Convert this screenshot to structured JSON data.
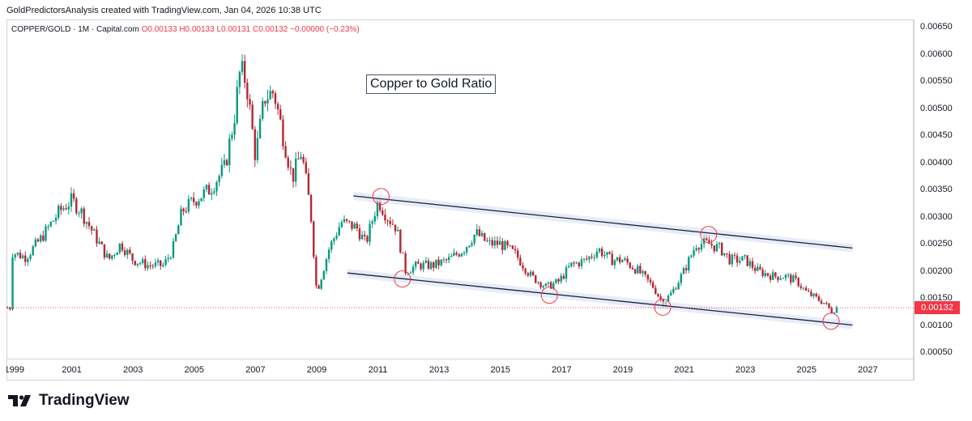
{
  "header": {
    "credit": "GoldPredictorsAnalysis created with TradingView.com, Jan 04, 2026 10:38 UTC"
  },
  "legend": {
    "symbol": "COPPER/GOLD · 1M · Capital.com",
    "open": "O0.00133",
    "high": "H0.00133",
    "low": "L0.00131",
    "close": "C0.00132",
    "change": "−0.00000 (−0.23%)"
  },
  "chart_data": {
    "type": "candlestick",
    "title": "Copper to Gold Ratio",
    "ylim": [
      0.0003,
      0.0067
    ],
    "xlim": [
      1999.0,
      2028.5
    ],
    "y_ticks": [
      "0.00650",
      "0.00600",
      "0.00550",
      "0.00500",
      "0.00450",
      "0.00400",
      "0.00350",
      "0.00300",
      "0.00250",
      "0.00200",
      "0.00150",
      "0.00100",
      "0.00050"
    ],
    "x_ticks": [
      "1999",
      "2001",
      "2003",
      "2005",
      "2007",
      "2009",
      "2011",
      "2013",
      "2015",
      "2017",
      "2019",
      "2021",
      "2023",
      "2025",
      "2027"
    ],
    "last_price": "0.00132",
    "series": [
      {
        "name": "COPPER/GOLD monthly close (approx.)",
        "points": [
          [
            1999.0,
            0.00235
          ],
          [
            1999.5,
            0.00225
          ],
          [
            2000.0,
            0.0026
          ],
          [
            2000.6,
            0.0031
          ],
          [
            2001.0,
            0.0033
          ],
          [
            2001.3,
            0.0031
          ],
          [
            2001.8,
            0.0026
          ],
          [
            2002.2,
            0.0022
          ],
          [
            2002.6,
            0.0025
          ],
          [
            2003.0,
            0.0022
          ],
          [
            2003.5,
            0.0021
          ],
          [
            2004.0,
            0.0021
          ],
          [
            2004.3,
            0.0024
          ],
          [
            2004.6,
            0.0031
          ],
          [
            2005.0,
            0.0033
          ],
          [
            2005.5,
            0.0035
          ],
          [
            2006.0,
            0.0039
          ],
          [
            2006.3,
            0.0048
          ],
          [
            2006.5,
            0.0057
          ],
          [
            2006.7,
            0.0055
          ],
          [
            2007.0,
            0.0041
          ],
          [
            2007.3,
            0.0052
          ],
          [
            2007.6,
            0.0053
          ],
          [
            2007.9,
            0.0045
          ],
          [
            2008.2,
            0.0037
          ],
          [
            2008.5,
            0.0042
          ],
          [
            2008.8,
            0.0031
          ],
          [
            2009.0,
            0.0016
          ],
          [
            2009.4,
            0.0024
          ],
          [
            2009.8,
            0.0029
          ],
          [
            2010.3,
            0.0028
          ],
          [
            2010.6,
            0.0025
          ],
          [
            2011.0,
            0.0033
          ],
          [
            2011.3,
            0.003
          ],
          [
            2011.6,
            0.0028
          ],
          [
            2011.9,
            0.002
          ],
          [
            2012.3,
            0.0021
          ],
          [
            2012.8,
            0.0021
          ],
          [
            2013.3,
            0.0022
          ],
          [
            2013.8,
            0.0024
          ],
          [
            2014.2,
            0.0027
          ],
          [
            2014.6,
            0.0025
          ],
          [
            2015.0,
            0.0025
          ],
          [
            2015.5,
            0.0023
          ],
          [
            2016.0,
            0.0019
          ],
          [
            2016.5,
            0.0017
          ],
          [
            2016.9,
            0.0018
          ],
          [
            2017.3,
            0.0021
          ],
          [
            2017.8,
            0.0022
          ],
          [
            2018.2,
            0.0024
          ],
          [
            2018.6,
            0.0022
          ],
          [
            2019.0,
            0.0022
          ],
          [
            2019.5,
            0.002
          ],
          [
            2020.0,
            0.0017
          ],
          [
            2020.3,
            0.0014
          ],
          [
            2020.6,
            0.0016
          ],
          [
            2021.0,
            0.002
          ],
          [
            2021.4,
            0.0025
          ],
          [
            2021.8,
            0.0025
          ],
          [
            2022.2,
            0.0024
          ],
          [
            2022.5,
            0.0022
          ],
          [
            2023.0,
            0.0022
          ],
          [
            2023.4,
            0.002
          ],
          [
            2023.9,
            0.0019
          ],
          [
            2024.3,
            0.0019
          ],
          [
            2024.7,
            0.0018
          ],
          [
            2025.0,
            0.0016
          ],
          [
            2025.3,
            0.0015
          ],
          [
            2025.6,
            0.0014
          ],
          [
            2025.8,
            0.00125
          ],
          [
            2026.0,
            0.00132
          ]
        ]
      }
    ],
    "channel": {
      "upper": [
        [
          2010.2,
          0.00338
        ],
        [
          2026.5,
          0.00242
        ]
      ],
      "lower": [
        [
          2010.0,
          0.00196
        ],
        [
          2026.5,
          0.001
        ]
      ]
    },
    "marked_points": [
      [
        2011.1,
        0.00337
      ],
      [
        2011.8,
        0.00185
      ],
      [
        2016.6,
        0.00155
      ],
      [
        2020.3,
        0.00133
      ],
      [
        2021.8,
        0.00267
      ],
      [
        2025.8,
        0.00107
      ]
    ],
    "colors": {
      "up": "#089981",
      "down": "#b22833",
      "channel": "#1e2236",
      "marker": "#f23645",
      "last": "#f23645"
    }
  },
  "brand": {
    "name": "TradingView"
  }
}
